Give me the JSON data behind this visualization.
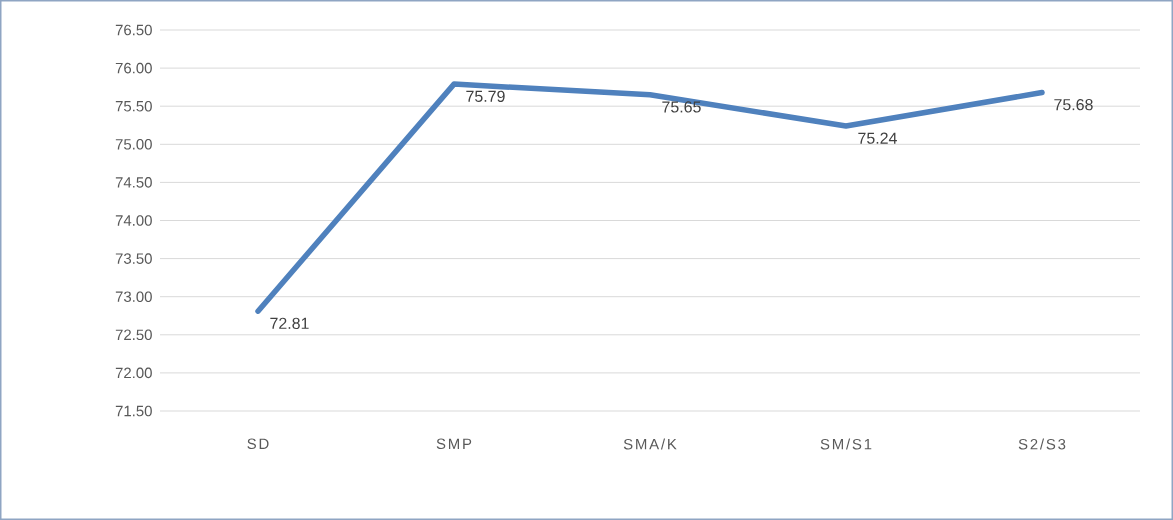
{
  "chart_data": {
    "type": "line",
    "categories": [
      "SD",
      "SMP",
      "SMA/K",
      "SM/S1",
      "S2/S3"
    ],
    "series": [
      {
        "color": "#4f81bd",
        "values": [
          72.81,
          75.79,
          75.65,
          75.24,
          75.68
        ]
      }
    ],
    "ylim": [
      71.5,
      76.5
    ],
    "yticks": [
      {
        "value": 71.5,
        "label": "71.50"
      },
      {
        "value": 72.0,
        "label": "72.00"
      },
      {
        "value": 72.5,
        "label": "72.50"
      },
      {
        "value": 73.0,
        "label": "73.00"
      },
      {
        "value": 73.5,
        "label": "73.50"
      },
      {
        "value": 74.0,
        "label": "74.00"
      },
      {
        "value": 74.5,
        "label": "74.50"
      },
      {
        "value": 75.0,
        "label": "75.00"
      },
      {
        "value": 75.5,
        "label": "75.50"
      },
      {
        "value": 76.0,
        "label": "76.00"
      },
      {
        "value": 76.5,
        "label": "76.50"
      }
    ],
    "grid": "y",
    "data_labels": true,
    "marker": "none"
  }
}
